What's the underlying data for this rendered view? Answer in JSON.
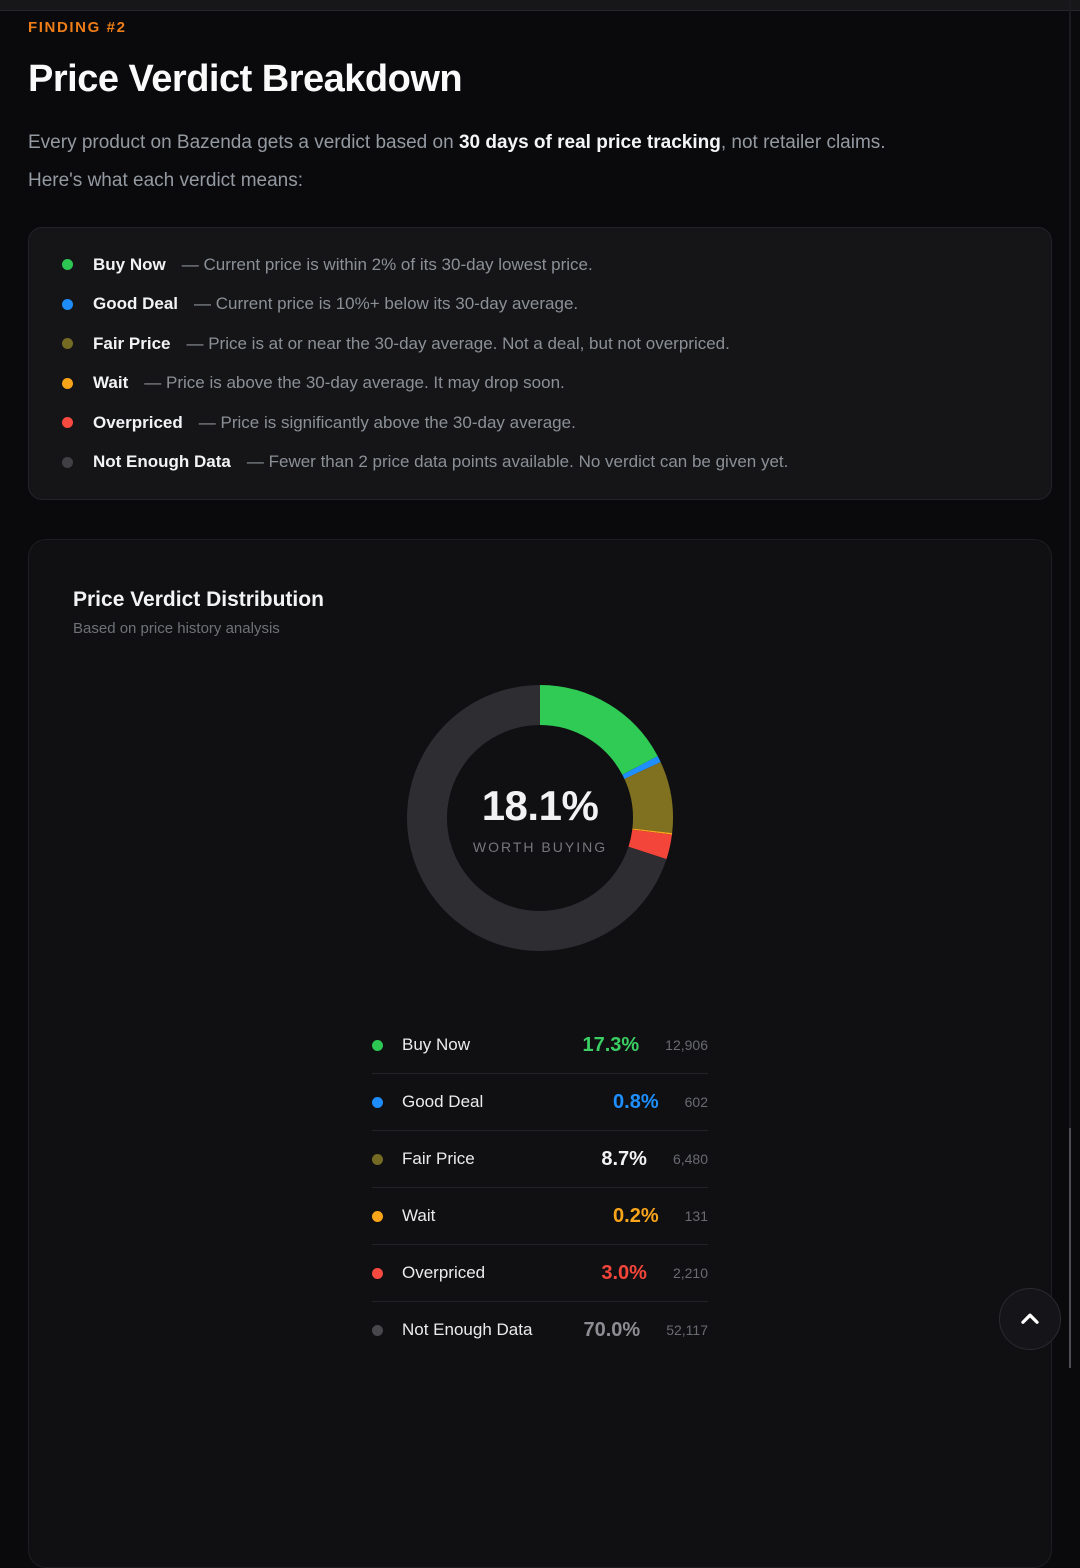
{
  "page": {
    "eyebrow": "FINDING #2",
    "title": "Price Verdict Breakdown"
  },
  "intro": {
    "line1_pre": "Every product on Bazenda gets a verdict based on ",
    "line1_bold": "30 days of real price tracking",
    "line1_post": ", not retailer claims.",
    "line2": "Here's what each verdict means:"
  },
  "verdicts": {
    "items": [
      {
        "label": "Buy Now",
        "desc": "— Current price is within 2% of its 30-day lowest price.",
        "color": "#2dc653"
      },
      {
        "label": "Good Deal",
        "desc": "— Current price is 10%+ below its 30-day average.",
        "color": "#1e8cfa"
      },
      {
        "label": "Fair Price",
        "desc": "— Price is at or near the 30-day average. Not a deal, but not overpriced.",
        "color": "#756a24"
      },
      {
        "label": "Wait",
        "desc": "— Price is above the 30-day average. It may drop soon.",
        "color": "#faa41a"
      },
      {
        "label": "Overpriced",
        "desc": "— Price is significantly above the 30-day average.",
        "color": "#f64a40"
      },
      {
        "label": "Not Enough Data",
        "desc": "— Fewer than 2 price data points available. No verdict can be given yet.",
        "color": "#404045"
      }
    ]
  },
  "chart_card": {
    "title": "Price Verdict Distribution",
    "subtitle": "Based on price history analysis"
  },
  "chart_data": {
    "type": "pie",
    "variant": "donut",
    "title": "Price Verdict Distribution",
    "subtitle": "Based on price history analysis",
    "center": {
      "value": "18.1%",
      "label": "WORTH BUYING"
    },
    "start_angle_deg": 0,
    "direction": "clockwise",
    "legend_position": "bottom",
    "series": [
      {
        "label": "Buy Now",
        "percent": 17.3,
        "percent_text": "17.3%",
        "count": "12,906",
        "color": "#2fcb55",
        "percent_color": "#3bcf63",
        "dot_color": "#2dc653"
      },
      {
        "label": "Good Deal",
        "percent": 0.8,
        "percent_text": "0.8%",
        "count": "602",
        "color": "#1f8fff",
        "percent_color": "#1e8fff",
        "dot_color": "#1e8cfa"
      },
      {
        "label": "Fair Price",
        "percent": 8.7,
        "percent_text": "8.7%",
        "count": "6,480",
        "color": "#7f7120",
        "percent_color": "#f2f2f3",
        "dot_color": "#756a24"
      },
      {
        "label": "Wait",
        "percent": 0.2,
        "percent_text": "0.2%",
        "count": "131",
        "color": "#f9a51b",
        "percent_color": "#f9a51b",
        "dot_color": "#faa41a"
      },
      {
        "label": "Overpriced",
        "percent": 3.0,
        "percent_text": "3.0%",
        "count": "2,210",
        "color": "#f4453a",
        "percent_color": "#f4453a",
        "dot_color": "#f64a40"
      },
      {
        "label": "Not Enough Data",
        "percent": 70.0,
        "percent_text": "70.0%",
        "count": "52,117",
        "color": "#2d2d32",
        "percent_color": "#8d8d93",
        "dot_color": "#47474c"
      }
    ]
  },
  "scroll_top": {
    "icon": "chevron-up"
  }
}
